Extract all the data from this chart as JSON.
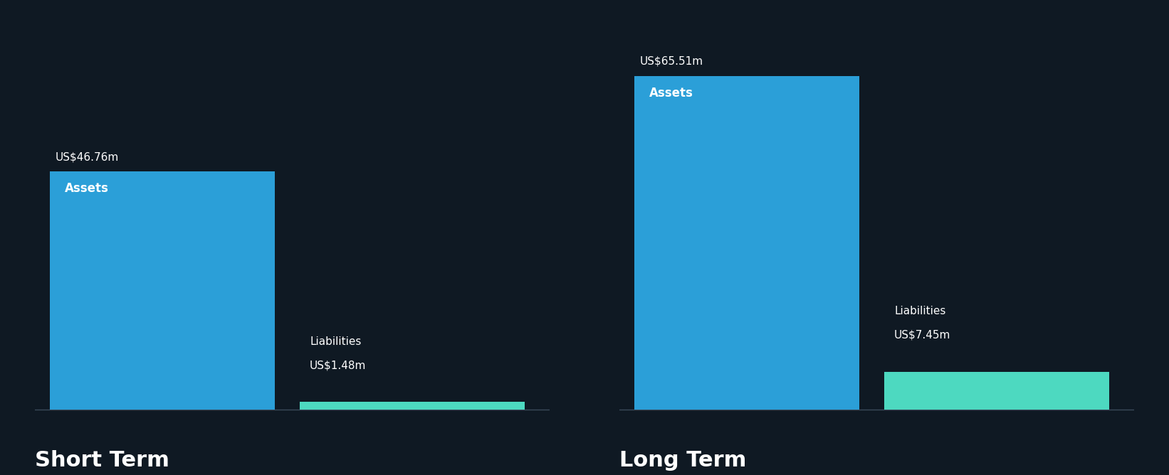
{
  "background_color": "#0f1923",
  "text_color": "#ffffff",
  "asset_color": "#2b9fd8",
  "liability_color": "#4dd9c0",
  "sections": [
    {
      "label": "Short Term",
      "asset_value": 46.76,
      "asset_label": "Assets",
      "asset_value_str": "US$46.76m",
      "liability_value": 1.48,
      "liability_label": "Liabilities",
      "liability_value_str": "US$1.48m"
    },
    {
      "label": "Long Term",
      "asset_value": 65.51,
      "asset_label": "Assets",
      "asset_value_str": "US$65.51m",
      "liability_value": 7.45,
      "liability_label": "Liabilities",
      "liability_value_str": "US$7.45m"
    }
  ],
  "max_value": 72,
  "value_label_fontsize": 11,
  "inner_label_fontsize": 12,
  "section_label_fontsize": 22
}
